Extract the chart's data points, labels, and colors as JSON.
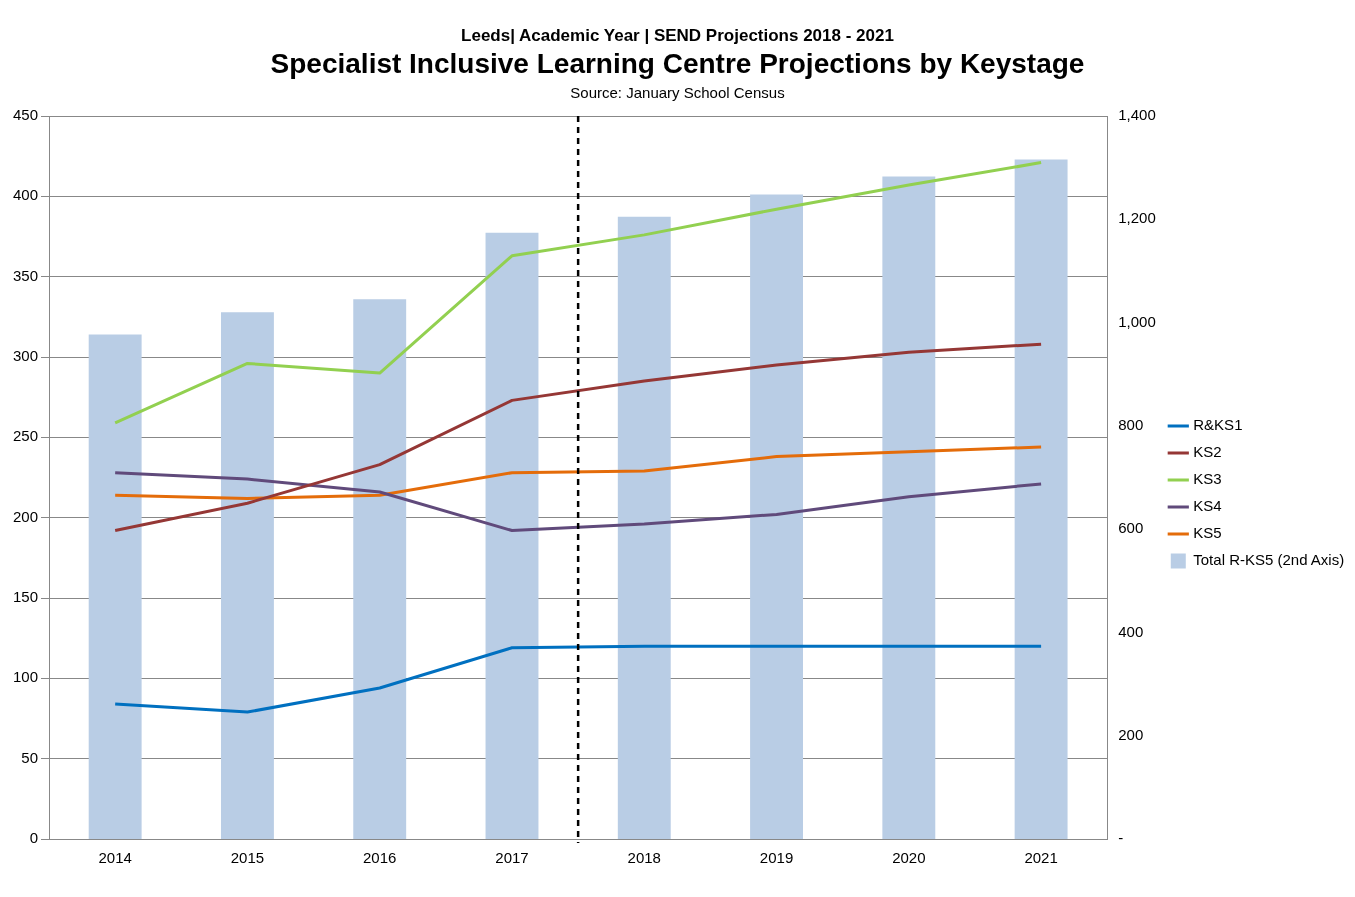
{
  "chart_data": {
    "type": "line",
    "subtitle": "Leeds| Academic Year | SEND Projections 2018 - 2021",
    "title": "Specialist Inclusive Learning Centre Projections by Keystage",
    "annotations": [
      "Source: January School Census"
    ],
    "x": [
      2014,
      2015,
      2016,
      2017,
      2018,
      2019,
      2020,
      2021
    ],
    "xlim": [
      2013.5,
      2021.5
    ],
    "xticks": [
      2014,
      2015,
      2016,
      2017,
      2018,
      2019,
      2020,
      2021
    ],
    "ylim": [
      0,
      450
    ],
    "yticks": [
      0,
      50,
      100,
      150,
      200,
      250,
      300,
      350,
      400,
      450
    ],
    "y2lim": [
      0,
      1400
    ],
    "y2ticks": [
      {
        "value": 0,
        "label": "-"
      },
      200,
      400,
      600,
      800,
      {
        "value": 1000,
        "label": "1,000"
      },
      {
        "value": 1200,
        "label": "1,200"
      },
      {
        "value": 1400,
        "label": "1,400"
      }
    ],
    "grid": "y",
    "legend": "right",
    "marker": "none",
    "line_style": "solid",
    "ref_lines": [
      {
        "axis": "x",
        "value": 2017.5,
        "color": "#000000",
        "line_style": "dashed"
      }
    ],
    "series": [
      {
        "name": "Total R-KS5 (2nd Axis)",
        "type": "bar",
        "axis": "y2",
        "color": "#b9cde5",
        "values": [
          977,
          1020,
          1045,
          1174,
          1205,
          1248,
          1283,
          1316
        ]
      },
      {
        "name": "R&KS1",
        "color": "#0070c0",
        "values": [
          84,
          79,
          94,
          119,
          120,
          120,
          120,
          120
        ]
      },
      {
        "name": "KS2",
        "color": "#953735",
        "values": [
          192,
          209,
          233,
          273,
          285,
          295,
          303,
          308
        ]
      },
      {
        "name": "KS3",
        "color": "#92d050",
        "values": [
          259,
          296,
          290,
          363,
          376,
          392,
          407,
          421
        ]
      },
      {
        "name": "KS4",
        "color": "#604a7b",
        "values": [
          228,
          224,
          216,
          192,
          196,
          202,
          213,
          221
        ]
      },
      {
        "name": "KS5",
        "color": "#e46c0a",
        "values": [
          214,
          212,
          214,
          228,
          229,
          238,
          241,
          244
        ]
      }
    ]
  }
}
